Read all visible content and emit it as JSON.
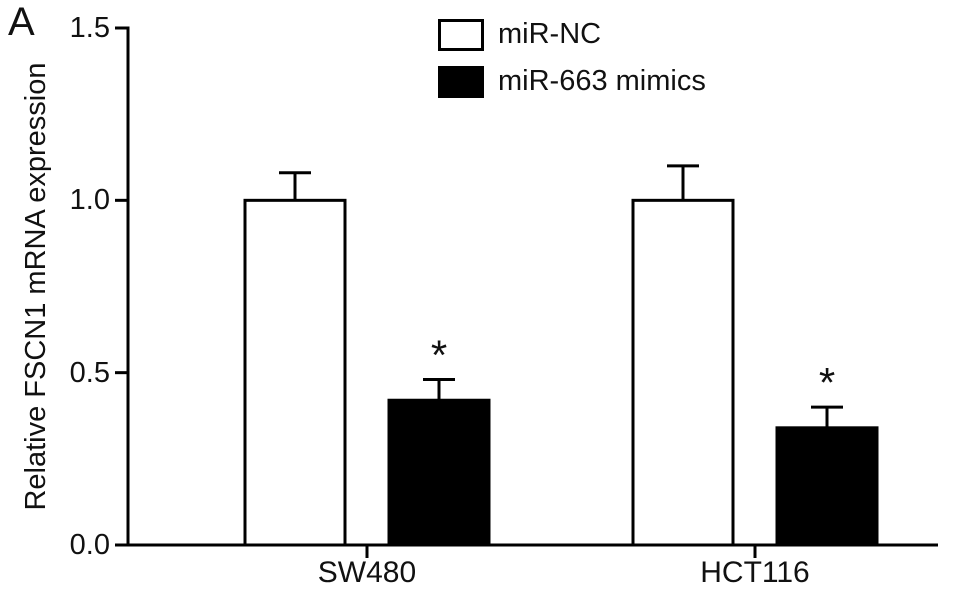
{
  "panel_label": "A",
  "chart_data": {
    "type": "bar",
    "title": "",
    "xlabel": "",
    "ylabel": "Relative FSCN1 mRNA expression",
    "ylim": [
      0,
      1.5
    ],
    "yticks": [
      0.0,
      0.5,
      1.0,
      1.5
    ],
    "ytick_labels": [
      "0.0",
      "0.5",
      "1.0",
      "1.5"
    ],
    "categories": [
      "SW480",
      "HCT116"
    ],
    "series": [
      {
        "name": "miR-NC",
        "fill": "#ffffff",
        "values": [
          1.0,
          1.0
        ],
        "errors": [
          0.08,
          0.1
        ]
      },
      {
        "name": "miR-663 mimics",
        "fill": "#000000",
        "values": [
          0.42,
          0.34
        ],
        "errors": [
          0.06,
          0.06
        ]
      }
    ],
    "annotations": [
      {
        "category": "SW480",
        "series": "miR-663 mimics",
        "text": "*"
      },
      {
        "category": "HCT116",
        "series": "miR-663 mimics",
        "text": "*"
      }
    ],
    "legend_position": "top-center",
    "grid": false,
    "axis_color": "#000000",
    "bar_border_color": "#000000"
  }
}
